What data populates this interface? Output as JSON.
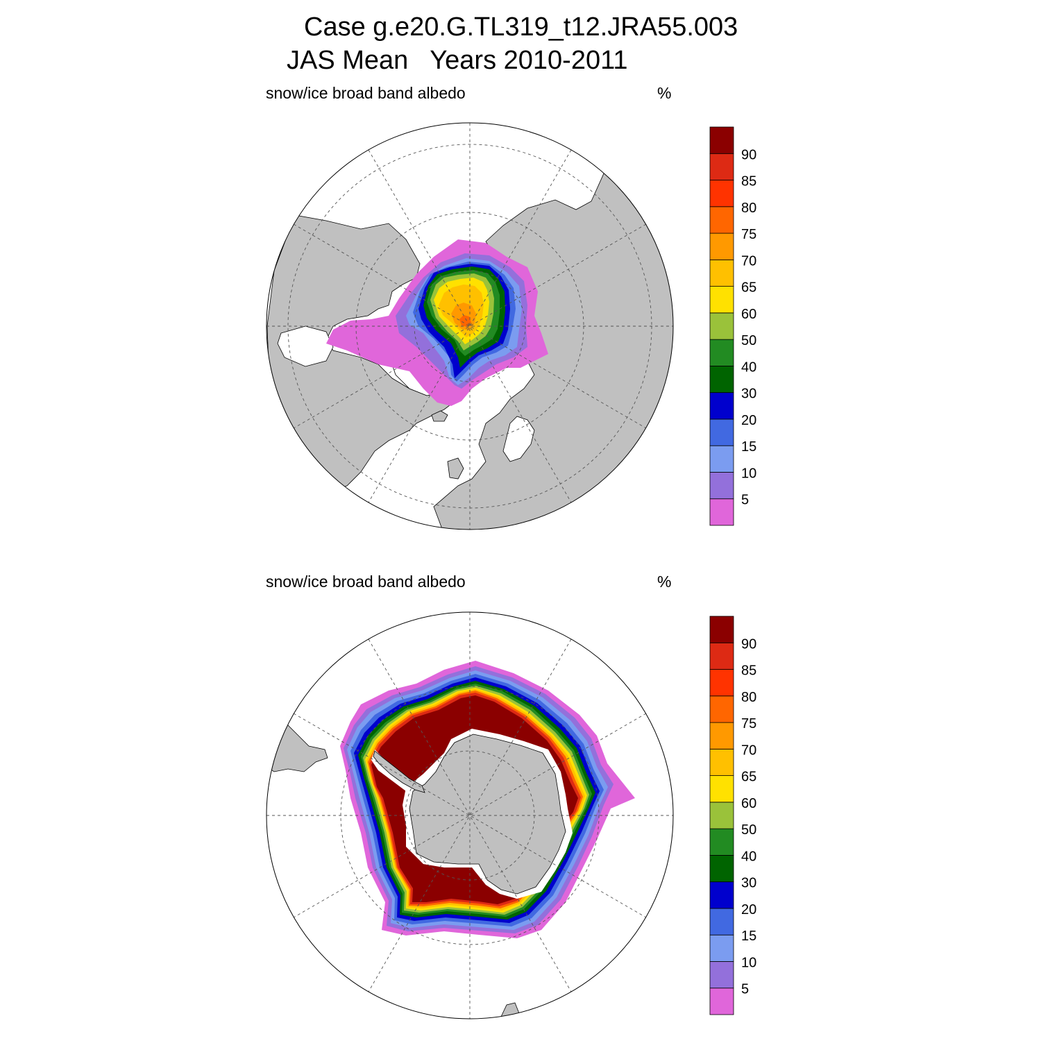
{
  "figure": {
    "title_line1": "Case g.e20.G.TL319_t12.JRA55.003",
    "title_line2": "JAS Mean   Years 2010-2011"
  },
  "colorbar": {
    "labels": [
      "5",
      "10",
      "15",
      "20",
      "30",
      "40",
      "50",
      "60",
      "65",
      "70",
      "75",
      "80",
      "85",
      "90"
    ],
    "colors": [
      "#e066da",
      "#9370db",
      "#7b9cf0",
      "#4169e1",
      "#0000cd",
      "#006400",
      "#228b22",
      "#9ac23a",
      "#ffe100",
      "#ffc000",
      "#ff9900",
      "#ff6600",
      "#ff3300",
      "#dd2a14",
      "#8b0000"
    ]
  },
  "panels": [
    {
      "id": "north",
      "hemisphere": "Northern",
      "variable_label": "snow/ice broad band albedo",
      "units_label": "%"
    },
    {
      "id": "south",
      "hemisphere": "Southern",
      "variable_label": "snow/ice broad band albedo",
      "units_label": "%"
    }
  ],
  "style": {
    "land_color": "#c0c0c0",
    "ocean_color": "#ffffff",
    "grid_color": "#555555"
  }
}
